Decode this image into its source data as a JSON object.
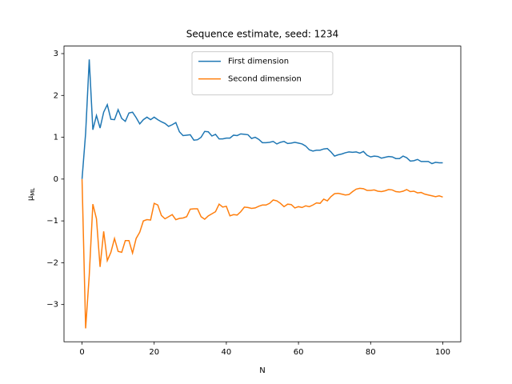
{
  "chart_data": {
    "type": "line",
    "title": "Sequence estimate, seed: 1234",
    "xlabel": "N",
    "ylabel": {
      "symbol": "μ",
      "subscript": "ML"
    },
    "x": [
      0,
      1,
      2,
      3,
      4,
      5,
      6,
      7,
      8,
      9,
      10,
      11,
      12,
      13,
      14,
      15,
      16,
      17,
      18,
      19,
      20,
      21,
      22,
      23,
      24,
      25,
      26,
      27,
      28,
      29,
      30,
      31,
      32,
      33,
      34,
      35,
      36,
      37,
      38,
      39,
      40,
      41,
      42,
      43,
      44,
      45,
      46,
      47,
      48,
      49,
      50,
      51,
      52,
      53,
      54,
      55,
      56,
      57,
      58,
      59,
      60,
      61,
      62,
      63,
      64,
      65,
      66,
      67,
      68,
      69,
      70,
      71,
      72,
      73,
      74,
      75,
      76,
      77,
      78,
      79,
      80,
      81,
      82,
      83,
      84,
      85,
      86,
      87,
      88,
      89,
      90,
      91,
      92,
      93,
      94,
      95,
      96,
      97,
      98,
      99,
      100
    ],
    "series": [
      {
        "name": "First dimension",
        "color": "#1f77b4",
        "values": [
          0,
          1.1,
          2.86,
          1.18,
          1.52,
          1.22,
          1.6,
          1.78,
          1.43,
          1.42,
          1.66,
          1.45,
          1.38,
          1.58,
          1.6,
          1.47,
          1.32,
          1.42,
          1.48,
          1.42,
          1.48,
          1.42,
          1.37,
          1.33,
          1.26,
          1.3,
          1.35,
          1.13,
          1.04,
          1.05,
          1.06,
          0.93,
          0.94,
          1.0,
          1.14,
          1.13,
          1.03,
          1.07,
          0.96,
          0.96,
          0.98,
          0.98,
          1.05,
          1.04,
          1.08,
          1.07,
          1.06,
          0.97,
          1.0,
          0.95,
          0.87,
          0.87,
          0.88,
          0.9,
          0.84,
          0.88,
          0.9,
          0.85,
          0.86,
          0.88,
          0.86,
          0.84,
          0.79,
          0.7,
          0.67,
          0.69,
          0.69,
          0.72,
          0.73,
          0.65,
          0.55,
          0.58,
          0.6,
          0.63,
          0.65,
          0.64,
          0.65,
          0.62,
          0.66,
          0.57,
          0.53,
          0.55,
          0.54,
          0.5,
          0.52,
          0.54,
          0.53,
          0.49,
          0.49,
          0.55,
          0.51,
          0.43,
          0.44,
          0.47,
          0.42,
          0.42,
          0.42,
          0.37,
          0.4,
          0.39,
          0.39
        ]
      },
      {
        "name": "Second dimension",
        "color": "#ff7f0e",
        "values": [
          0,
          -3.57,
          -2.3,
          -0.6,
          -0.95,
          -2.1,
          -1.25,
          -1.95,
          -1.75,
          -1.42,
          -1.73,
          -1.75,
          -1.47,
          -1.47,
          -1.77,
          -1.42,
          -1.27,
          -1.0,
          -0.97,
          -0.98,
          -0.58,
          -0.62,
          -0.87,
          -0.95,
          -0.9,
          -0.85,
          -0.97,
          -0.94,
          -0.93,
          -0.9,
          -0.72,
          -0.71,
          -0.71,
          -0.9,
          -0.96,
          -0.88,
          -0.83,
          -0.78,
          -0.6,
          -0.67,
          -0.65,
          -0.88,
          -0.85,
          -0.86,
          -0.78,
          -0.67,
          -0.68,
          -0.7,
          -0.69,
          -0.65,
          -0.62,
          -0.62,
          -0.58,
          -0.5,
          -0.52,
          -0.58,
          -0.66,
          -0.6,
          -0.61,
          -0.69,
          -0.66,
          -0.68,
          -0.64,
          -0.66,
          -0.62,
          -0.57,
          -0.58,
          -0.48,
          -0.52,
          -0.42,
          -0.35,
          -0.34,
          -0.36,
          -0.38,
          -0.37,
          -0.3,
          -0.24,
          -0.22,
          -0.23,
          -0.27,
          -0.27,
          -0.26,
          -0.29,
          -0.3,
          -0.28,
          -0.25,
          -0.26,
          -0.3,
          -0.31,
          -0.29,
          -0.25,
          -0.3,
          -0.29,
          -0.33,
          -0.32,
          -0.36,
          -0.38,
          -0.4,
          -0.42,
          -0.4,
          -0.43
        ]
      }
    ],
    "xlim": [
      -5,
      105
    ],
    "xticks": [
      0,
      20,
      40,
      60,
      80,
      100
    ],
    "ylim": [
      -3.89,
      3.18
    ],
    "yticks": [
      {
        "value": -3,
        "label": "−3"
      },
      {
        "value": -2,
        "label": "−2"
      },
      {
        "value": -1,
        "label": "−1"
      },
      0,
      1,
      2,
      3
    ],
    "legend": "upper center",
    "grid": false
  }
}
